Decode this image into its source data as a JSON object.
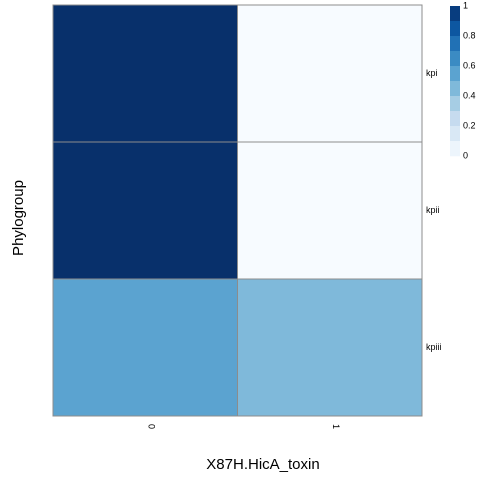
{
  "chart_data": {
    "type": "heatmap",
    "xlabel": "X87H.HicA_toxin",
    "ylabel": "Phylogroup",
    "x_categories": [
      "0",
      "1"
    ],
    "y_categories": [
      "kpi",
      "kpii",
      "kpiii"
    ],
    "values": [
      [
        1.0,
        0.0
      ],
      [
        1.0,
        0.0
      ],
      [
        0.55,
        0.45
      ]
    ],
    "color_scale": {
      "low": "#f7fbff",
      "high": "#08306b",
      "range": [
        0,
        1
      ],
      "ticks": [
        "0",
        "0.2",
        "0.4",
        "0.6",
        "0.8",
        "1"
      ],
      "tick_values": [
        0,
        0.2,
        0.4,
        0.6,
        0.8,
        1
      ]
    },
    "legend_position": "top-right",
    "grid": false
  }
}
